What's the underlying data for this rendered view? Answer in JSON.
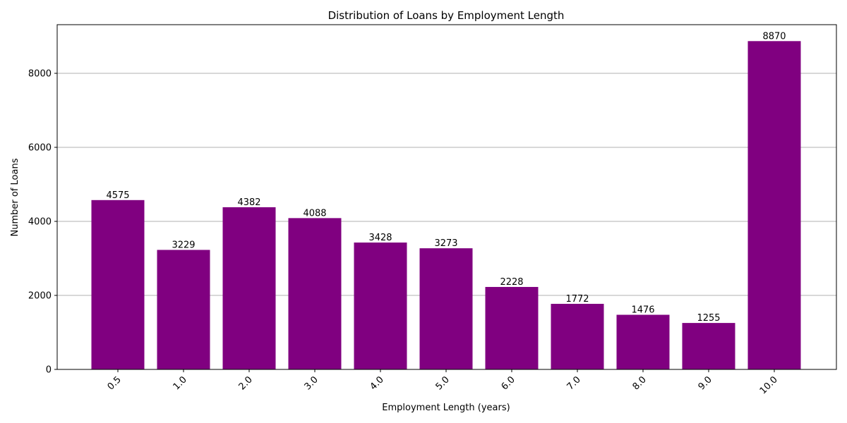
{
  "chart_data": {
    "type": "bar",
    "title": "Distribution of Loans by Employment Length",
    "xlabel": "Employment Length (years)",
    "ylabel": "Number of Loans",
    "categories": [
      "0.5",
      "1.0",
      "2.0",
      "3.0",
      "4.0",
      "5.0",
      "6.0",
      "7.0",
      "8.0",
      "9.0",
      "10.0"
    ],
    "values": [
      4575,
      3229,
      4382,
      4088,
      3428,
      3273,
      2228,
      1772,
      1476,
      1255,
      8870
    ],
    "ylim": [
      0,
      9314
    ],
    "yticks": [
      0,
      2000,
      4000,
      6000,
      8000
    ],
    "grid": "y-major",
    "bar_color": "#800080",
    "grid_color": "#b0b0b0",
    "xtick_rotation": -45,
    "legend": "none"
  }
}
